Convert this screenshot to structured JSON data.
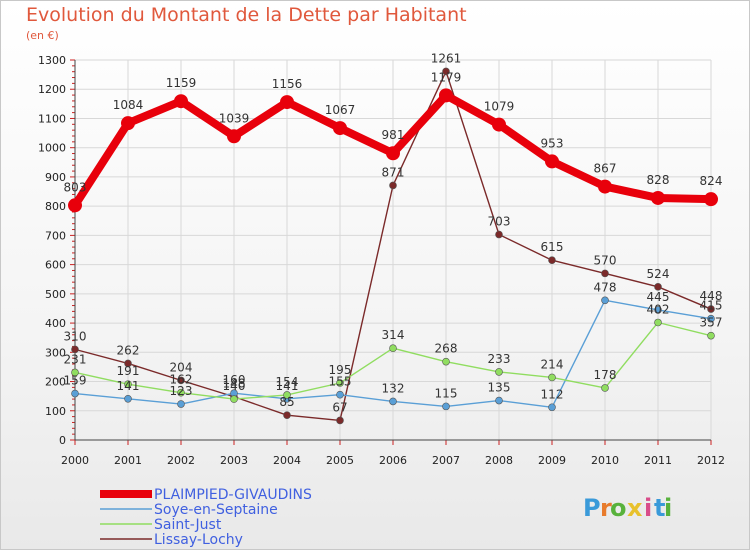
{
  "title": "Evolution du Montant de la Dette par Habitant",
  "subtitle": "(en €)",
  "logo": {
    "letters": [
      "P",
      "r",
      "o",
      "x",
      "i",
      "t",
      "i"
    ],
    "colors": [
      "#3a9ad9",
      "#e87b2c",
      "#58b23c",
      "#e8c12c",
      "#d94c8a",
      "#3a9ad9",
      "#58b23c"
    ]
  },
  "chart_data": {
    "type": "line",
    "x": [
      "2000",
      "2001",
      "2002",
      "2003",
      "2004",
      "2005",
      "2006",
      "2007",
      "2008",
      "2009",
      "2010",
      "2011",
      "2012"
    ],
    "ylim": [
      0,
      1300
    ],
    "yticks": [
      "0",
      "100",
      "200",
      "300",
      "400",
      "500",
      "600",
      "700",
      "800",
      "900",
      "1000",
      "1100",
      "1200",
      "1300"
    ],
    "grid": true,
    "legend": "bottom-left",
    "series": [
      {
        "name": "PLAIMPIED-GIVAUDINS",
        "color": "#e8000b",
        "values": [
          803,
          1084,
          1159,
          1039,
          1156,
          1067,
          981,
          1179,
          1079,
          953,
          867,
          828,
          824
        ],
        "labels": [
          "803",
          "1084",
          "1159",
          "1039",
          "1156",
          "1067",
          "981",
          "1179",
          "1079",
          "953",
          "867",
          "828",
          "824"
        ]
      },
      {
        "name": "Soye-en-Septaine",
        "color": "#5a9fd6",
        "values": [
          159,
          141,
          123,
          160,
          141,
          155,
          132,
          115,
          135,
          112,
          478,
          445,
          415
        ],
        "labels": [
          "159",
          "141",
          "123",
          "160",
          "141",
          "155",
          "132",
          "115",
          "135",
          "112",
          "478",
          "445",
          "415"
        ]
      },
      {
        "name": "Saint-Just",
        "color": "#90dd60",
        "values": [
          231,
          191,
          162,
          140,
          154,
          195,
          314,
          268,
          233,
          214,
          178,
          402,
          357
        ],
        "labels": [
          "231",
          "191",
          "162",
          "140",
          "154",
          "195",
          "314",
          "268",
          "233",
          "214",
          "178",
          "402",
          "357"
        ]
      },
      {
        "name": "Lissay-Lochy",
        "color": "#7b2a2a",
        "values": [
          310,
          262,
          204,
          148,
          85,
          67,
          871,
          1261,
          703,
          615,
          570,
          524,
          448
        ],
        "labels": [
          "310",
          "262",
          "204",
          "148",
          "85",
          "67",
          "871",
          "1261",
          "703",
          "615",
          "570",
          "524",
          "448"
        ]
      }
    ]
  }
}
